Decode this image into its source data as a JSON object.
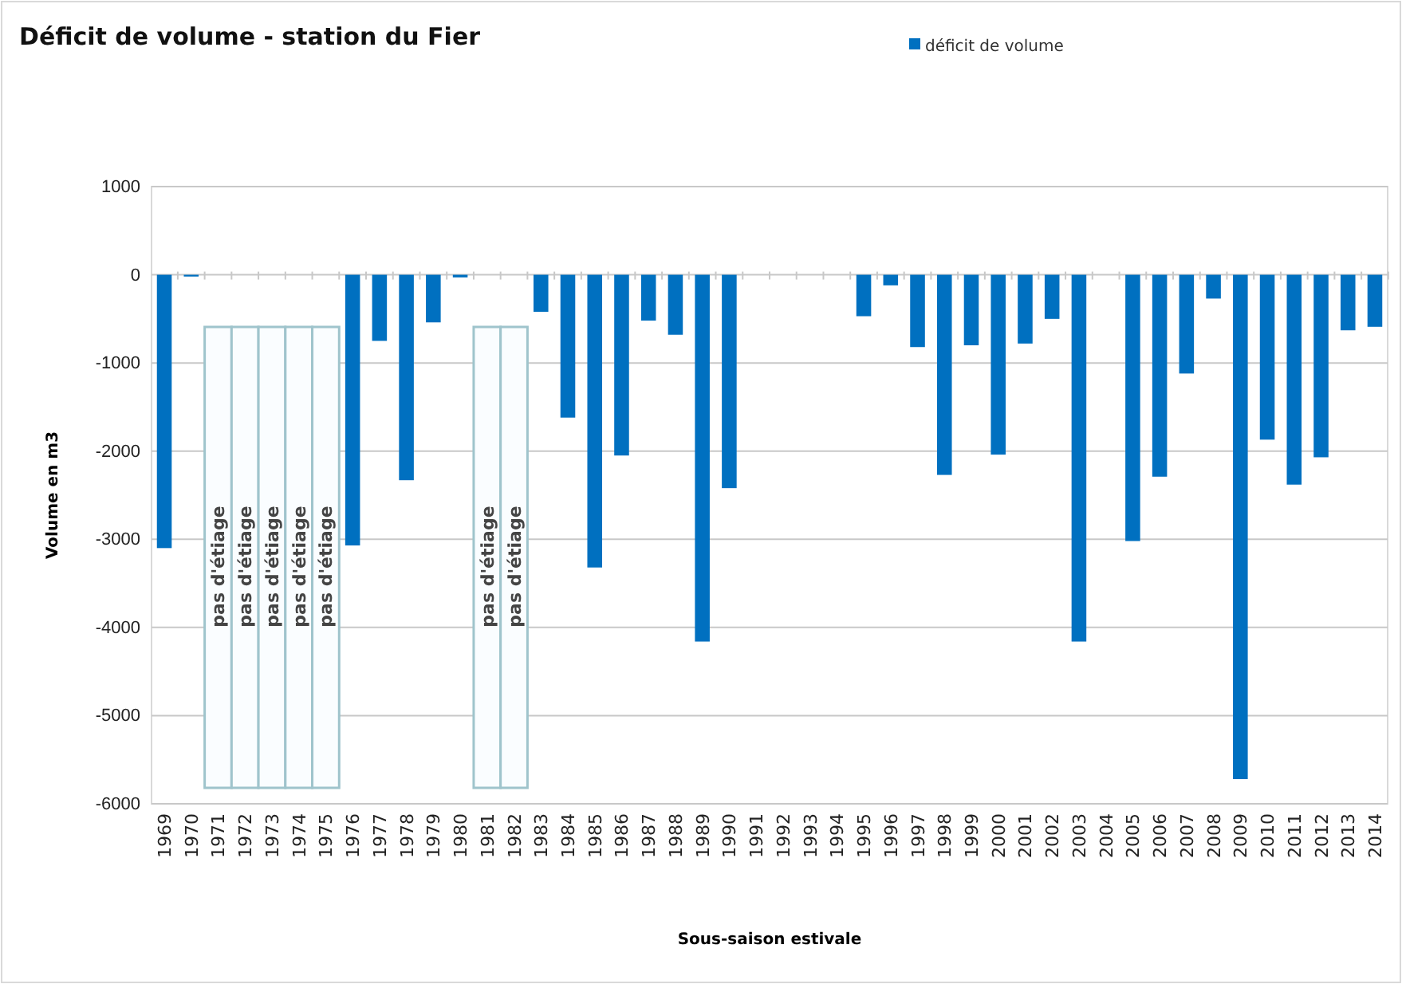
{
  "chart_data": {
    "type": "bar",
    "title": "Déficit de volume - station du Fier",
    "xlabel": "Sous-saison estivale",
    "ylabel": "Volume en m3",
    "categories": [
      "1969",
      "1970",
      "1971",
      "1972",
      "1973",
      "1974",
      "1975",
      "1976",
      "1977",
      "1978",
      "1979",
      "1980",
      "1981",
      "1982",
      "1983",
      "1984",
      "1985",
      "1986",
      "1987",
      "1988",
      "1989",
      "1990",
      "1991",
      "1992",
      "1993",
      "1994",
      "1995",
      "1996",
      "1997",
      "1998",
      "1999",
      "2000",
      "2001",
      "2002",
      "2003",
      "2004",
      "2005",
      "2006",
      "2007",
      "2008",
      "2009",
      "2010",
      "2011",
      "2012",
      "2013",
      "2014"
    ],
    "series": [
      {
        "name": "déficit de volume",
        "color": "#0070c0",
        "values": [
          -3100,
          -20,
          null,
          null,
          null,
          null,
          null,
          -3070,
          -750,
          -2330,
          -540,
          -30,
          null,
          null,
          -420,
          -1620,
          -3320,
          -2050,
          -520,
          -680,
          -4160,
          -2420,
          null,
          null,
          null,
          null,
          -470,
          -120,
          -820,
          -2270,
          -800,
          -2040,
          -780,
          -500,
          -4160,
          null,
          -3020,
          -2290,
          -1120,
          -270,
          -5720,
          -1870,
          -2380,
          -2070,
          -630,
          -590
        ]
      }
    ],
    "ylim": [
      -6000,
      1000
    ],
    "yticks": [
      -6000,
      -5000,
      -4000,
      -3000,
      -2000,
      -1000,
      0,
      1000
    ],
    "grid": "y",
    "legend": "top right",
    "annotations": [
      "pas d'étiage",
      "pas d'étiage",
      "pas d'étiage",
      "pas d'étiage",
      "pas d'étiage",
      "pas d'étiage",
      "pas d'étiage"
    ]
  }
}
